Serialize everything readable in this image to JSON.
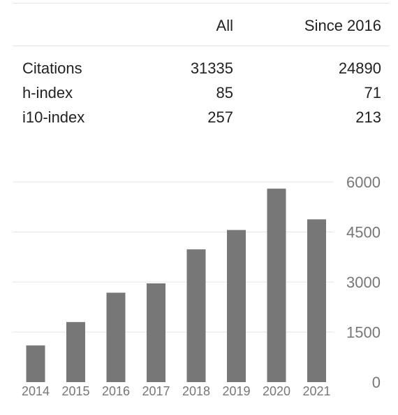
{
  "stats_table": {
    "columns": [
      "All",
      "Since 2016"
    ],
    "rows": [
      {
        "label": "Citations",
        "all": "31335",
        "since": "24890"
      },
      {
        "label": "h-index",
        "all": "85",
        "since": "71"
      },
      {
        "label": "i10-index",
        "all": "257",
        "since": "213"
      }
    ]
  },
  "chart_data": {
    "type": "bar",
    "categories": [
      "2014",
      "2015",
      "2016",
      "2017",
      "2018",
      "2019",
      "2020",
      "2021"
    ],
    "values": [
      1100,
      1800,
      2680,
      2960,
      3980,
      4560,
      5800,
      4880
    ],
    "ylim": [
      0,
      6000
    ],
    "yticks": [
      0,
      1500,
      3000,
      4500,
      6000
    ],
    "grid": true,
    "bar_color": "#777777",
    "grid_color": "#e6e6e6",
    "tick_color": "#777777"
  }
}
